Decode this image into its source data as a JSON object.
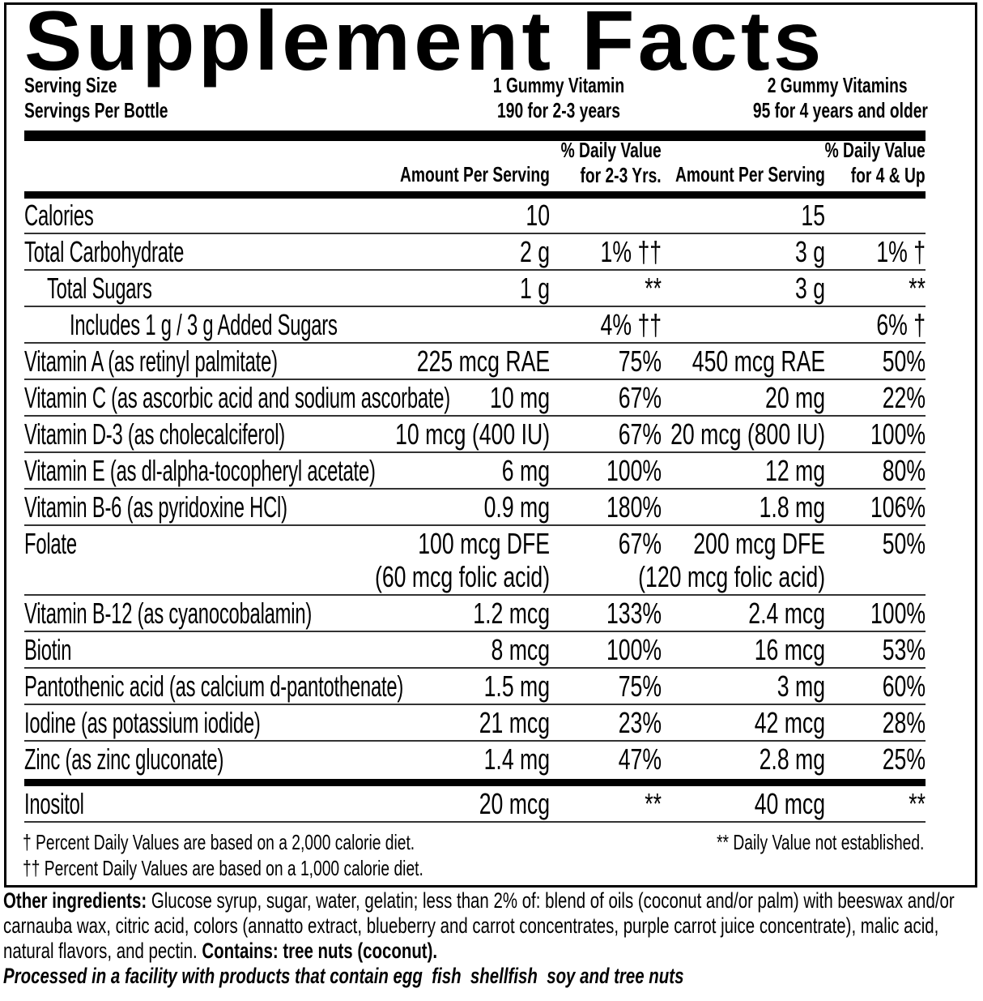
{
  "title": "Supplement Facts",
  "serving": {
    "size_label": "Serving Size",
    "per_bottle_label": "Servings Per Bottle",
    "col1_size": "1 Gummy Vitamin",
    "col1_servings": "190 for 2-3 years",
    "col2_size": "2 Gummy Vitamins",
    "col2_servings": "95 for 4 years and older"
  },
  "columns": {
    "amount1": "Amount Per Serving",
    "dv1_line1": "% Daily Value",
    "dv1_line2": "for 2-3 Yrs.",
    "amount2": "Amount Per Serving",
    "dv2_line1": "% Daily Value",
    "dv2_line2": "for 4 & Up"
  },
  "rows": [
    {
      "label": "Calories",
      "indent": 0,
      "amt1": "10",
      "dv1": "",
      "amt2": "15",
      "dv2": ""
    },
    {
      "label": "Total Carbohydrate",
      "indent": 0,
      "amt1": "2 g",
      "dv1": "1% ††",
      "amt2": "3 g",
      "dv2": "1% †"
    },
    {
      "label": "Total Sugars",
      "indent": 1,
      "amt1": "1 g",
      "dv1": "**",
      "amt2": "3 g",
      "dv2": "**"
    },
    {
      "label": "Includes 1 g / 3 g Added Sugars",
      "indent": 2,
      "amt1": "",
      "dv1": "4% ††",
      "amt2": "",
      "dv2": "6% †"
    },
    {
      "label": "Vitamin A (as retinyl palmitate)",
      "indent": 0,
      "amt1": "225 mcg RAE",
      "dv1": "75%",
      "amt2": "450 mcg RAE",
      "dv2": "50%"
    },
    {
      "label": "Vitamin C (as ascorbic acid and sodium ascorbate)",
      "indent": 0,
      "amt1": "10 mg",
      "dv1": "67%",
      "amt2": "20 mg",
      "dv2": "22%"
    },
    {
      "label": "Vitamin D-3 (as cholecalciferol)",
      "indent": 0,
      "amt1": "10 mcg (400 IU)",
      "dv1": "67%",
      "amt2": "20 mcg (800 IU)",
      "dv2": "100%"
    },
    {
      "label": "Vitamin E (as dl-alpha-tocopheryl acetate)",
      "indent": 0,
      "amt1": "6 mg",
      "dv1": "100%",
      "amt2": "12 mg",
      "dv2": "80%"
    },
    {
      "label": "Vitamin B-6 (as pyridoxine HCl)",
      "indent": 0,
      "amt1": "0.9 mg",
      "dv1": "180%",
      "amt2": "1.8 mg",
      "dv2": "106%"
    },
    {
      "label": "Folate",
      "indent": 0,
      "amt1": "100 mcg DFE",
      "amt1_sub": "(60 mcg folic acid)",
      "dv1": "67%",
      "amt2": "200 mcg DFE",
      "amt2_sub": "(120 mcg folic acid)",
      "dv2": "50%"
    },
    {
      "label": "Vitamin B-12 (as cyanocobalamin)",
      "indent": 0,
      "amt1": "1.2 mcg",
      "dv1": "133%",
      "amt2": "2.4 mcg",
      "dv2": "100%"
    },
    {
      "label": "Biotin",
      "indent": 0,
      "amt1": "8 mcg",
      "dv1": "100%",
      "amt2": "16 mcg",
      "dv2": "53%"
    },
    {
      "label": "Pantothenic acid (as calcium d-pantothenate)",
      "indent": 0,
      "amt1": "1.5 mg",
      "dv1": "75%",
      "amt2": "3 mg",
      "dv2": "60%"
    },
    {
      "label": "Iodine (as potassium iodide)",
      "indent": 0,
      "amt1": "21 mcg",
      "dv1": "23%",
      "amt2": "42 mcg",
      "dv2": "28%"
    },
    {
      "label": "Zinc (as zinc gluconate)",
      "indent": 0,
      "amt1": "1.4 mg",
      "dv1": "47%",
      "amt2": "2.8 mg",
      "dv2": "25%"
    },
    {
      "label": "Inositol",
      "indent": 0,
      "amt1": "20 mcg",
      "dv1": "**",
      "amt2": "40 mcg",
      "dv2": "**",
      "thick_before": true
    }
  ],
  "footnotes": {
    "dagger": "† Percent Daily Values are based on a 2,000 calorie diet.",
    "double_dagger": "†† Percent Daily Values are based on a 1,000 calorie diet.",
    "not_established": "** Daily Value not established."
  },
  "ingredients": {
    "label": "Other ingredients:",
    "text": " Glucose syrup, sugar, water, gelatin; less than 2% of: blend of oils (coconut and/or palm) with beeswax and/or carnauba wax, citric acid, colors (annatto extract, blueberry and carrot concentrates, purple carrot juice concentrate), malic acid, natural flavors, and pectin. ",
    "contains": "Contains: tree nuts (coconut).",
    "facility": "Processed in a facility with products that contain egg  fish  shellfish  soy and tree nuts"
  }
}
